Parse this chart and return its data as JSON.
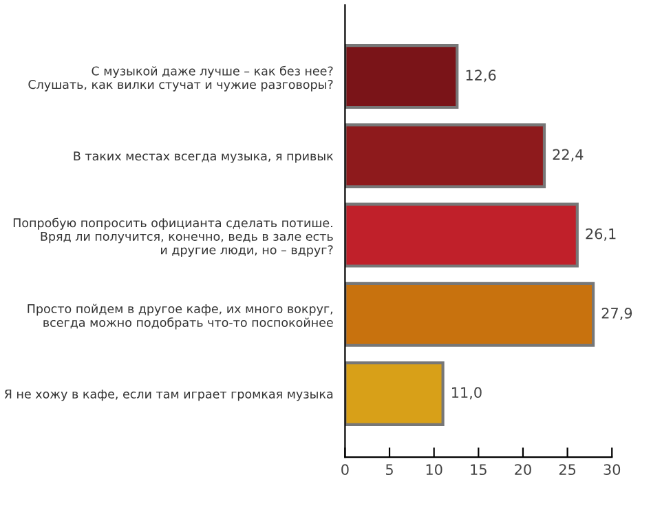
{
  "chart_data": {
    "type": "bar",
    "orientation": "horizontal",
    "categories": [
      "С музыкой даже лучше – как без нее?\nСлушать, как вилки стучат и чужие разговоры?",
      "В таких местах всегда музыка, я привык",
      "Попробую попросить официанта сделать потише.\nВряд ли получится, конечно, ведь в зале есть\nи другие люди, но – вдруг?",
      "Просто пойдем в другое кафе, их много вокруг,\nвсегда можно подобрать что-то поспокойнее",
      "Я не хожу в кафе, если там играет громкая музыка"
    ],
    "values": [
      12.6,
      22.4,
      26.1,
      27.9,
      11.0
    ],
    "value_labels": [
      "12,6",
      "22,4",
      "26,1",
      "27,9",
      "11,0"
    ],
    "colors": [
      "#7a1418",
      "#8e1a1c",
      "#c0202a",
      "#c8720e",
      "#d8a018"
    ],
    "xlim": [
      0,
      30
    ],
    "xticks": [
      0,
      5,
      10,
      15,
      20,
      25,
      30
    ],
    "grid": false,
    "legend": false
  }
}
